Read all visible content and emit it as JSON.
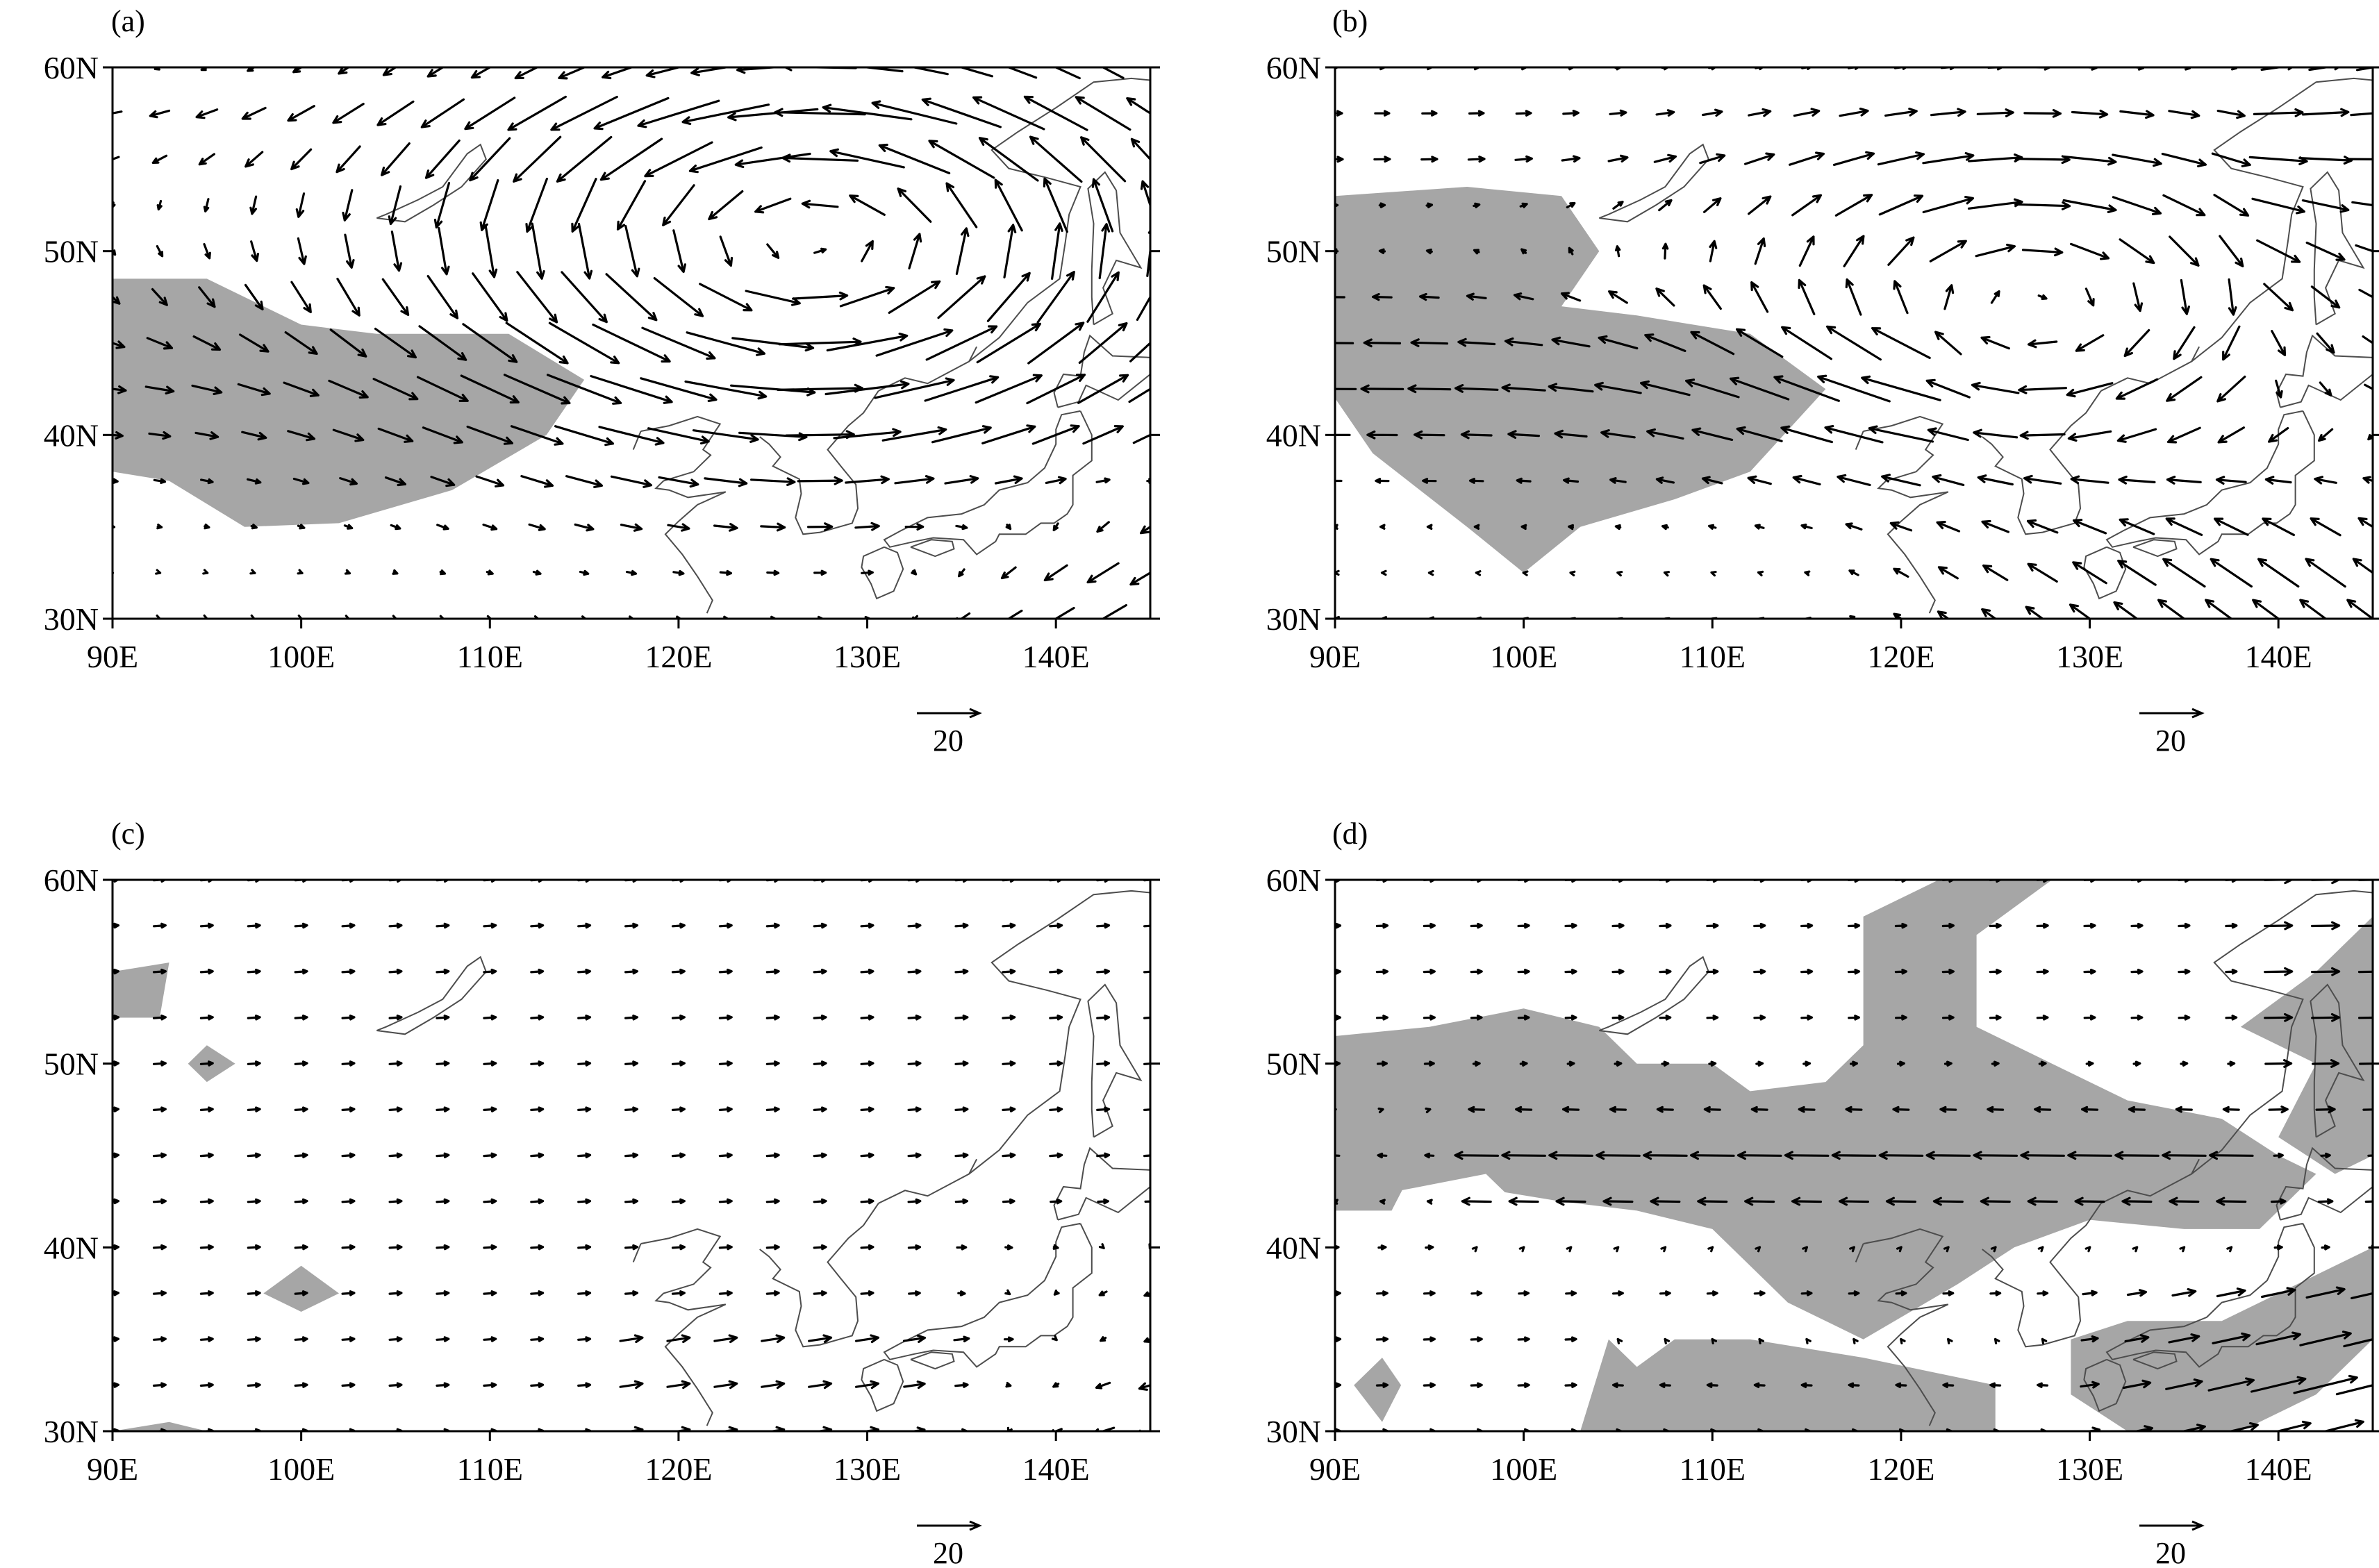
{
  "figure": {
    "colors": {
      "shading": "#a6a6a6",
      "arrow": "#000000",
      "coast": "#4d4d4d",
      "frame": "#000000"
    },
    "reference_vector": {
      "label": "20",
      "magnitude": 20
    },
    "x_ticks": [
      "90E",
      "100E",
      "110E",
      "120E",
      "130E",
      "140E"
    ],
    "y_ticks": [
      "30N",
      "40N",
      "50N",
      "60N"
    ],
    "extent": {
      "lon": [
        90,
        145
      ],
      "lat": [
        30,
        60
      ]
    }
  },
  "panels": [
    {
      "label": "(a)",
      "wind_pattern": "cyclonic_west",
      "shaded_areas": [
        [
          [
            90,
            48.5
          ],
          [
            95,
            48.5
          ],
          [
            100,
            46
          ],
          [
            104,
            45.5
          ],
          [
            111,
            45.5
          ],
          [
            115,
            43
          ],
          [
            113,
            40
          ],
          [
            108,
            37
          ],
          [
            102,
            35.2
          ],
          [
            97,
            35
          ],
          [
            93,
            37.5
          ],
          [
            90,
            38
          ]
        ]
      ]
    },
    {
      "label": "(b)",
      "wind_pattern": "anticyclonic_east",
      "shaded_areas": [
        [
          [
            90,
            53
          ],
          [
            97,
            53.5
          ],
          [
            102,
            53
          ],
          [
            104,
            50
          ],
          [
            102,
            47
          ],
          [
            106,
            46.5
          ],
          [
            112,
            45.5
          ],
          [
            116,
            42.5
          ],
          [
            112,
            38
          ],
          [
            108,
            36.5
          ],
          [
            103,
            35
          ],
          [
            100,
            32.5
          ],
          [
            97,
            35
          ],
          [
            92,
            39
          ],
          [
            90,
            42
          ]
        ]
      ]
    },
    {
      "label": "(c)",
      "wind_pattern": "weak_west",
      "shaded_areas": [
        [
          [
            90,
            55
          ],
          [
            93,
            55.5
          ],
          [
            92.5,
            52.5
          ],
          [
            90,
            52.5
          ]
        ],
        [
          [
            94,
            50
          ],
          [
            95,
            51
          ],
          [
            96.5,
            50
          ],
          [
            95,
            49
          ]
        ],
        [
          [
            98,
            37.5
          ],
          [
            100,
            39
          ],
          [
            102,
            37.5
          ],
          [
            100,
            36.5
          ]
        ],
        [
          [
            90,
            30
          ],
          [
            93,
            30.5
          ],
          [
            95,
            30
          ]
        ]
      ]
    },
    {
      "label": "(d)",
      "wind_pattern": "easterly_band",
      "shaded_areas": [
        [
          [
            90,
            51.5
          ],
          [
            95,
            52
          ],
          [
            100,
            53
          ],
          [
            104,
            52
          ],
          [
            106,
            50
          ],
          [
            110,
            50
          ],
          [
            112,
            48.5
          ],
          [
            116,
            49
          ],
          [
            118,
            51
          ],
          [
            118,
            58
          ],
          [
            122,
            60
          ],
          [
            128,
            60
          ],
          [
            124,
            57
          ],
          [
            124,
            52
          ],
          [
            128,
            50
          ],
          [
            132,
            48
          ],
          [
            137,
            47
          ],
          [
            140,
            45
          ],
          [
            142,
            44
          ],
          [
            139,
            41
          ],
          [
            135,
            41
          ],
          [
            130,
            41.5
          ],
          [
            126,
            40
          ],
          [
            123,
            38
          ],
          [
            118,
            35
          ],
          [
            114,
            37
          ],
          [
            112,
            39
          ],
          [
            110,
            41
          ],
          [
            106,
            42
          ],
          [
            102,
            42.5
          ],
          [
            99,
            43
          ],
          [
            98,
            44
          ],
          [
            93,
            43
          ],
          [
            90,
            43
          ]
        ],
        [
          [
            90,
            46
          ],
          [
            93,
            46.5
          ],
          [
            94,
            44
          ],
          [
            93,
            42
          ],
          [
            90,
            42
          ]
        ],
        [
          [
            100,
            46
          ],
          [
            104,
            47
          ],
          [
            104,
            44
          ],
          [
            100,
            44
          ]
        ],
        [
          [
            103,
            30
          ],
          [
            104.5,
            35
          ],
          [
            106,
            33.5
          ],
          [
            108,
            35
          ],
          [
            112,
            35
          ],
          [
            118,
            34
          ],
          [
            125,
            32.5
          ],
          [
            125,
            30
          ]
        ],
        [
          [
            91,
            32.5
          ],
          [
            92.5,
            34
          ],
          [
            93.5,
            32.5
          ],
          [
            92.5,
            30.5
          ]
        ],
        [
          [
            129,
            35
          ],
          [
            132,
            36
          ],
          [
            137,
            36
          ],
          [
            140,
            37.5
          ],
          [
            145,
            40
          ],
          [
            145,
            35
          ],
          [
            142,
            32
          ],
          [
            138,
            30
          ],
          [
            132,
            30
          ],
          [
            129,
            32
          ]
        ],
        [
          [
            140,
            46
          ],
          [
            143,
            44
          ],
          [
            145,
            45
          ],
          [
            145,
            58
          ],
          [
            142,
            55
          ],
          [
            138,
            52
          ],
          [
            142,
            50
          ]
        ]
      ]
    }
  ]
}
